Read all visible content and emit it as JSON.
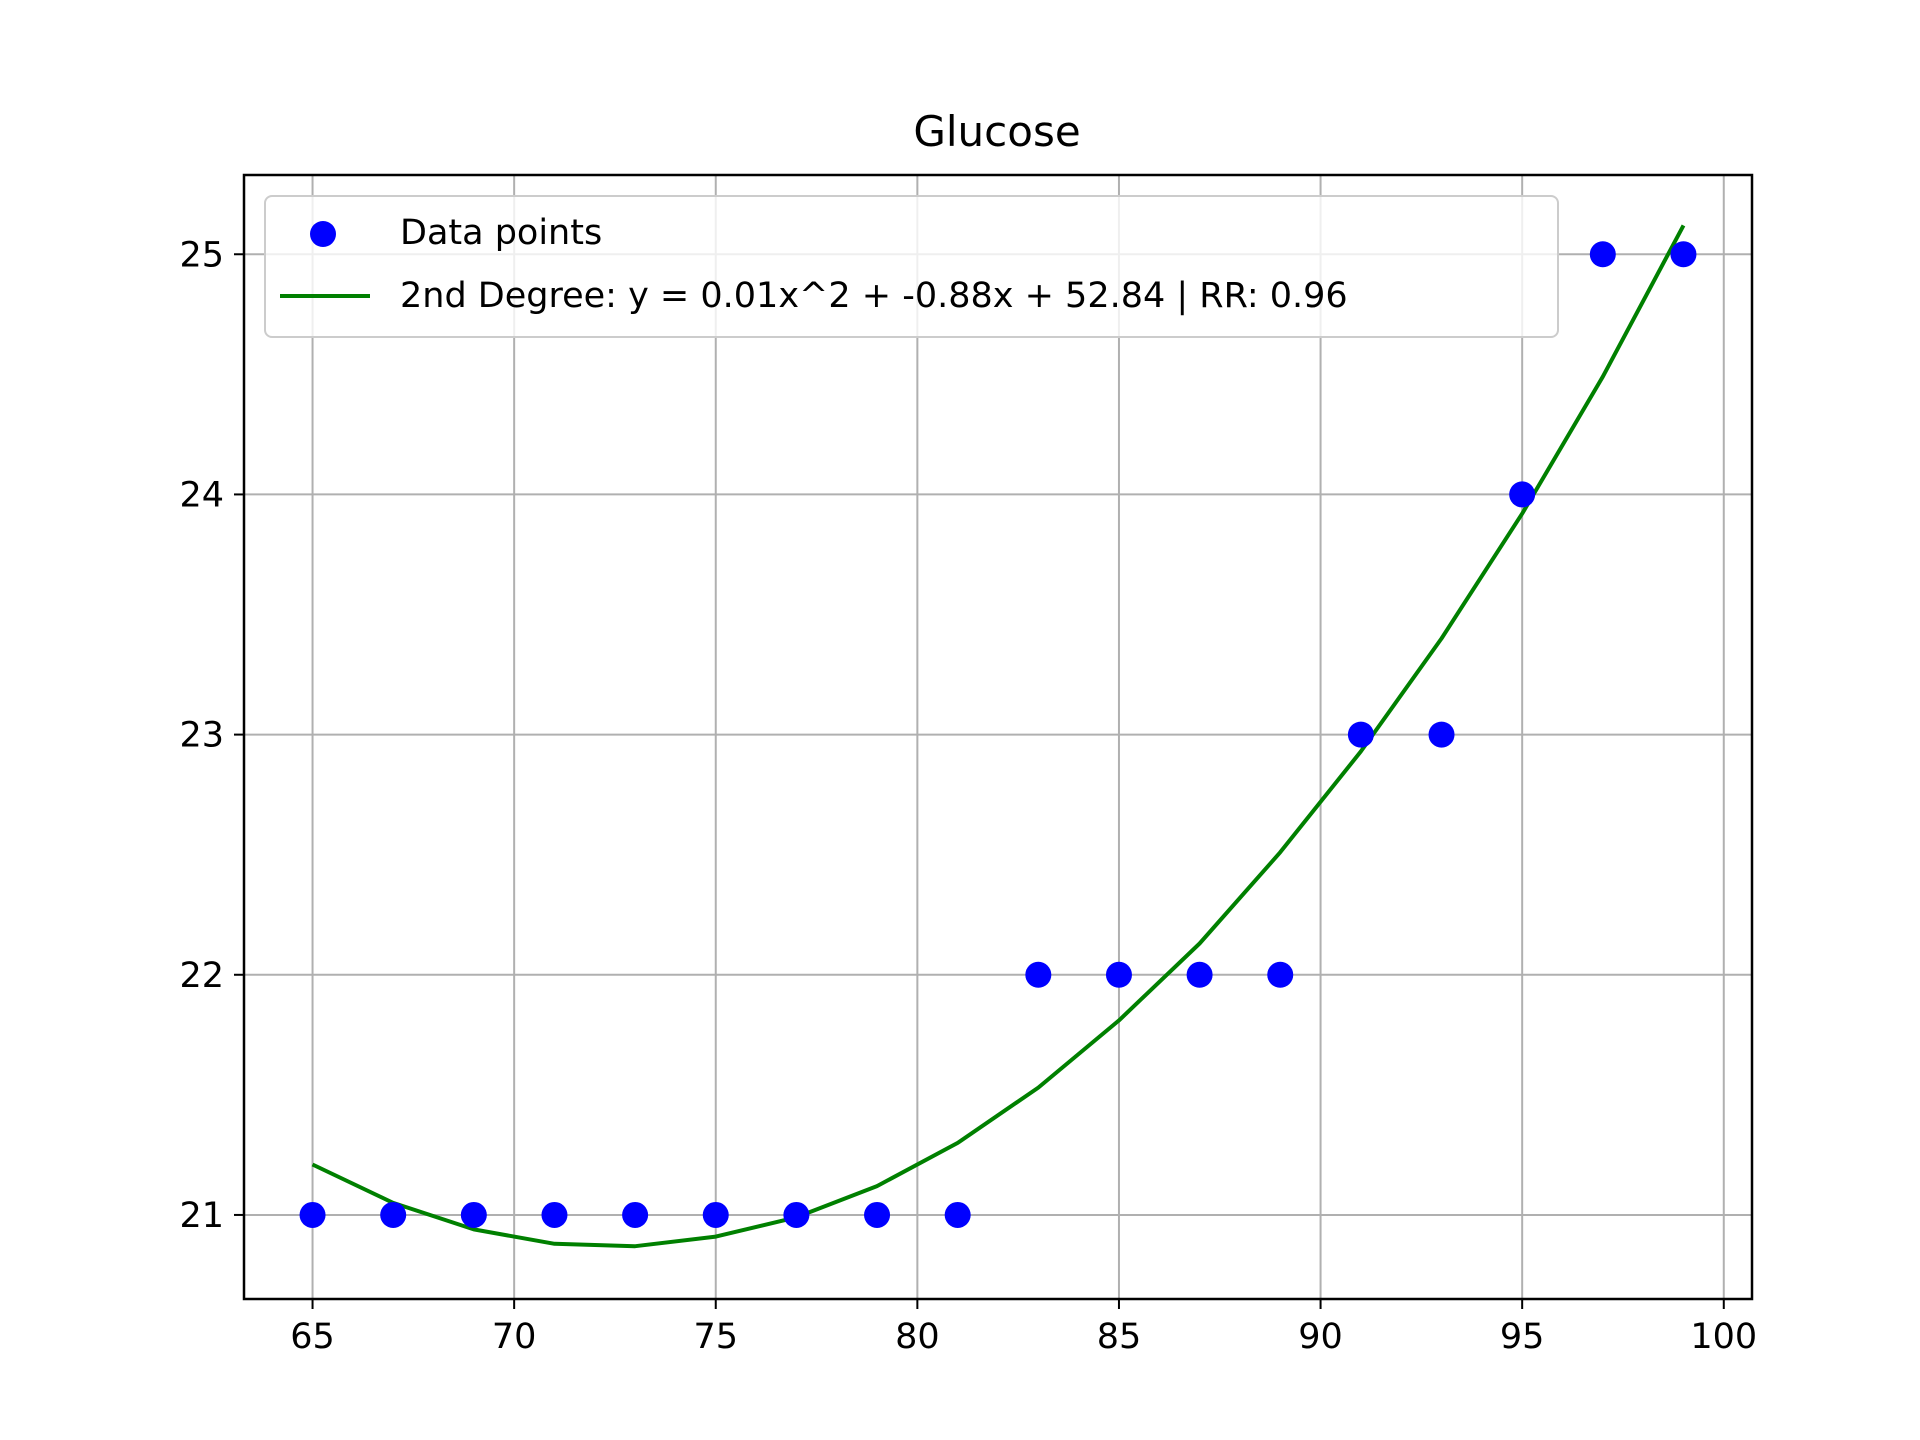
{
  "chart_data": {
    "type": "scatter",
    "title": "Glucose",
    "xlabel": "",
    "ylabel": "",
    "xlim": [
      63.3,
      100.7
    ],
    "ylim": [
      20.65,
      25.33
    ],
    "xticks": [
      65,
      70,
      75,
      80,
      85,
      90,
      95,
      100
    ],
    "yticks": [
      21,
      22,
      23,
      24,
      25
    ],
    "xtick_labels": [
      "65",
      "70",
      "75",
      "80",
      "85",
      "90",
      "95",
      "100"
    ],
    "ytick_labels": [
      "21",
      "22",
      "23",
      "24",
      "25"
    ],
    "grid": true,
    "legend_position": "top-left",
    "series": [
      {
        "name": "Data points",
        "kind": "scatter",
        "color": "#0000ff",
        "x": [
          65,
          67,
          69,
          71,
          73,
          75,
          77,
          79,
          81,
          83,
          85,
          87,
          89,
          91,
          93,
          95,
          97,
          99
        ],
        "y": [
          21,
          21,
          21,
          21,
          21,
          21,
          21,
          21,
          21,
          22,
          22,
          22,
          22,
          23,
          23,
          24,
          25,
          25
        ]
      },
      {
        "name": "2nd Degree: y = 0.01x^2 + -0.88x + 52.84 | RR: 0.96",
        "kind": "line",
        "color": "#008000",
        "x": [
          65,
          67,
          69,
          71,
          73,
          75,
          77,
          79,
          81,
          83,
          85,
          87,
          89,
          91,
          93,
          95,
          97,
          99
        ],
        "y": [
          21.21,
          21.05,
          20.94,
          20.88,
          20.87,
          20.91,
          20.99,
          21.12,
          21.3,
          21.53,
          21.81,
          22.13,
          22.51,
          22.93,
          23.4,
          23.92,
          24.49,
          25.12
        ]
      }
    ]
  }
}
